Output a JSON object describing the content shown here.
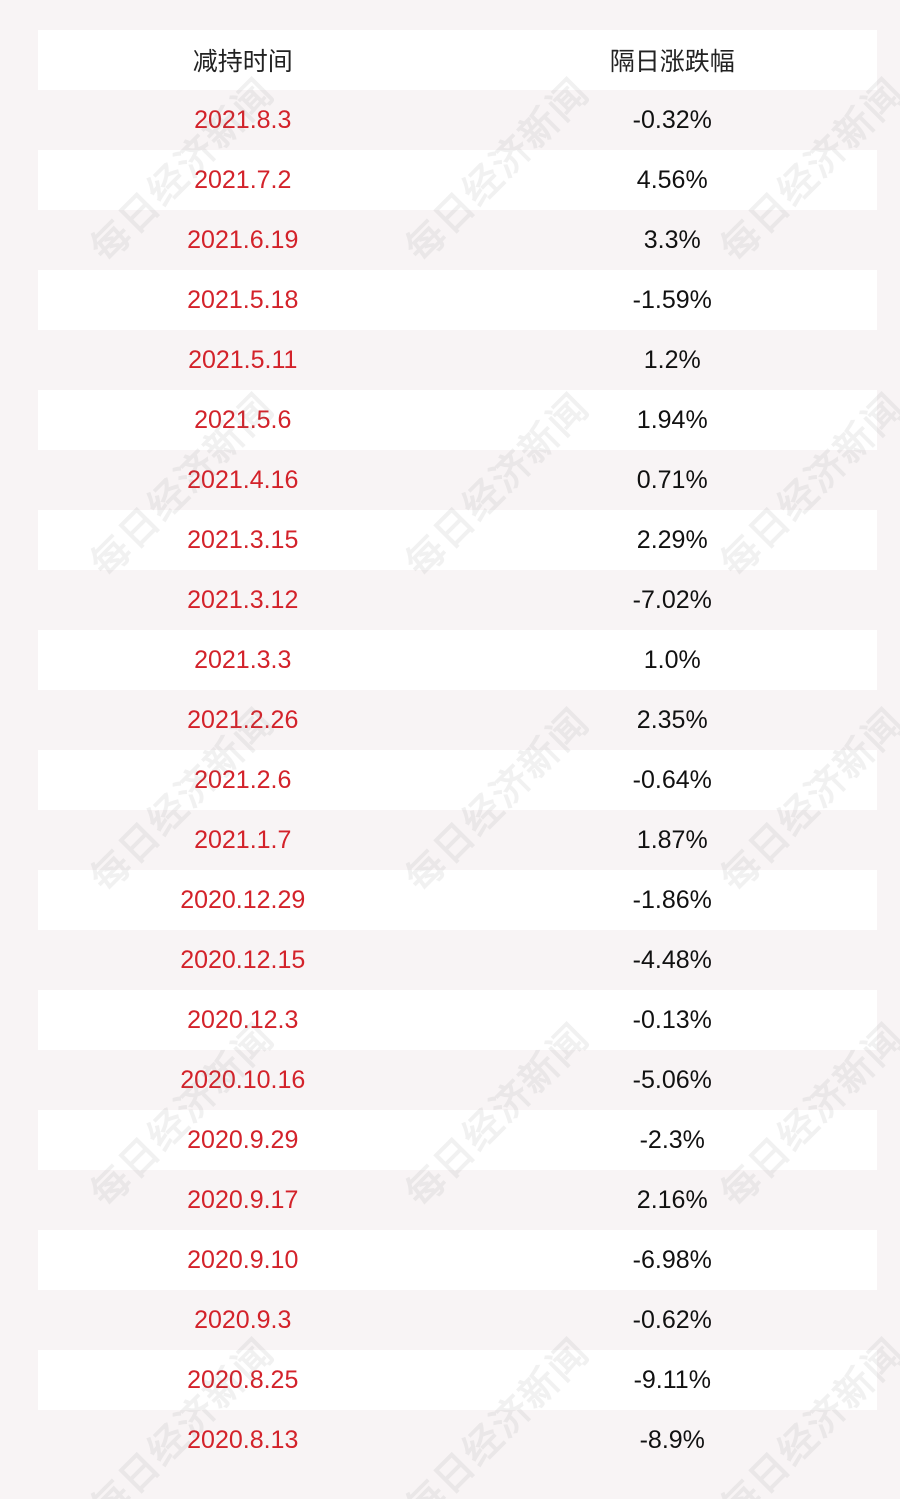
{
  "header": {
    "col_date": "减持时间",
    "col_change": "隔日涨跌幅"
  },
  "rows": [
    {
      "date": "2021.8.3",
      "change": "-0.32%"
    },
    {
      "date": "2021.7.2",
      "change": "4.56%"
    },
    {
      "date": "2021.6.19",
      "change": "3.3%"
    },
    {
      "date": "2021.5.18",
      "change": "-1.59%"
    },
    {
      "date": "2021.5.11",
      "change": "1.2%"
    },
    {
      "date": "2021.5.6",
      "change": "1.94%"
    },
    {
      "date": "2021.4.16",
      "change": "0.71%"
    },
    {
      "date": "2021.3.15",
      "change": "2.29%"
    },
    {
      "date": "2021.3.12",
      "change": "-7.02%"
    },
    {
      "date": "2021.3.3",
      "change": "1.0%"
    },
    {
      "date": "2021.2.26",
      "change": "2.35%"
    },
    {
      "date": "2021.2.6",
      "change": "-0.64%"
    },
    {
      "date": "2021.1.7",
      "change": "1.87%"
    },
    {
      "date": "2020.12.29",
      "change": "-1.86%"
    },
    {
      "date": "2020.12.15",
      "change": "-4.48%"
    },
    {
      "date": "2020.12.3",
      "change": "-0.13%"
    },
    {
      "date": "2020.10.16",
      "change": "-5.06%"
    },
    {
      "date": "2020.9.29",
      "change": "-2.3%"
    },
    {
      "date": "2020.9.17",
      "change": "2.16%"
    },
    {
      "date": "2020.9.10",
      "change": "-6.98%"
    },
    {
      "date": "2020.9.3",
      "change": "-0.62%"
    },
    {
      "date": "2020.8.25",
      "change": "-9.11%"
    },
    {
      "date": "2020.8.13",
      "change": "-8.9%"
    }
  ],
  "watermark": {
    "text": "每日经济新闻"
  },
  "colors": {
    "date_text": "#d3222a",
    "change_text": "#111111",
    "row_white": "#ffffff",
    "row_pink": "#f8f4f5"
  }
}
